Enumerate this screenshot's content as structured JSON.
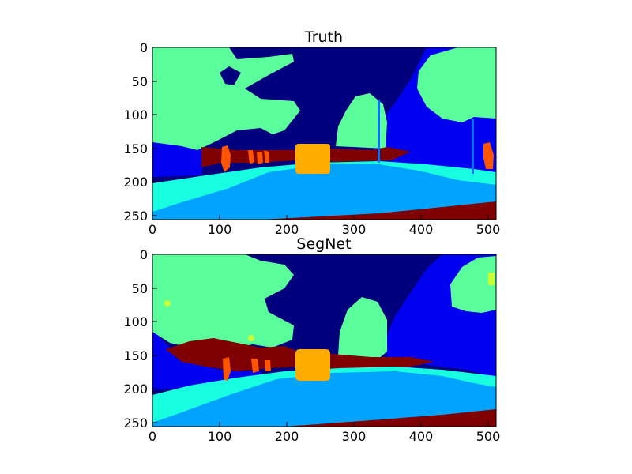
{
  "figure": {
    "background": "#ffffff"
  },
  "chart_data": [
    {
      "type": "heatmap",
      "title": "Truth",
      "xlabel": "",
      "ylabel": "",
      "xlim": [
        0,
        512
      ],
      "ylim": [
        256,
        0
      ],
      "x_ticks": [
        0,
        100,
        200,
        300,
        400,
        500
      ],
      "y_ticks": [
        0,
        50,
        100,
        150,
        200,
        250
      ],
      "grid": false,
      "colormap": "jet",
      "class_colors": {
        "sky": "#00007f",
        "building": "#0000f0",
        "pole": "#0070ff",
        "road": "#00a4ff",
        "pavement": "#17ffe0",
        "tree": "#5aff9c",
        "sign": "#c8ff36",
        "fence": "#ffc700",
        "car": "#ffab00",
        "pedestrian": "#ff5400",
        "bicyclist": "#e00000",
        "unlabelled": "#7f0000"
      }
    },
    {
      "type": "heatmap",
      "title": "SegNet",
      "xlabel": "",
      "ylabel": "",
      "xlim": [
        0,
        512
      ],
      "ylim": [
        256,
        0
      ],
      "x_ticks": [
        0,
        100,
        200,
        300,
        400,
        500
      ],
      "y_ticks": [
        0,
        50,
        100,
        150,
        200,
        250
      ],
      "grid": false,
      "colormap": "jet"
    }
  ]
}
